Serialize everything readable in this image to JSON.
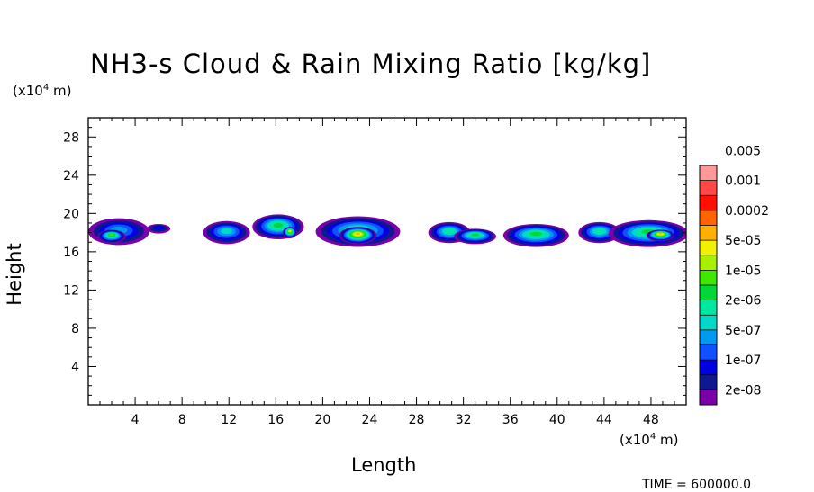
{
  "chart_data": {
    "type": "heatmap",
    "title": "NH3-s Cloud & Rain Mixing Ratio [kg/kg]",
    "xlabel": "Length",
    "ylabel": "Height",
    "x_unit_prefix": "(x10",
    "x_unit_exp": "4",
    "x_unit_suffix": " m)",
    "y_unit_prefix": "(x10",
    "y_unit_exp": "4",
    "y_unit_suffix": " m)",
    "xlim": [
      0,
      51
    ],
    "ylim": [
      0,
      30
    ],
    "x_ticks": [
      4,
      8,
      12,
      16,
      20,
      24,
      28,
      32,
      36,
      40,
      44,
      48
    ],
    "y_ticks": [
      4,
      8,
      12,
      16,
      20,
      24,
      28
    ],
    "colorbar": {
      "levels": [
        "2e-08",
        "1e-07",
        "5e-07",
        "2e-06",
        "1e-05",
        "5e-05",
        "0.0002",
        "0.001",
        "0.005"
      ],
      "colors": [
        "#7a00a8",
        "#101890",
        "#0000e0",
        "#1050ff",
        "#0098f0",
        "#00d8c8",
        "#00e8a0",
        "#00d838",
        "#40e800",
        "#a8f000",
        "#f0f000",
        "#ffb000",
        "#ff6400",
        "#ff1000",
        "#ff4848",
        "#ff9898"
      ]
    },
    "cells": [
      {
        "x": 2.6,
        "y": 18.1,
        "rx": 2.6,
        "ry": 1.4,
        "level": 4
      },
      {
        "x": 2.0,
        "y": 17.6,
        "rx": 1.2,
        "ry": 0.7,
        "level": 8
      },
      {
        "x": 6.0,
        "y": 18.4,
        "rx": 1.0,
        "ry": 0.5,
        "level": 2
      },
      {
        "x": 11.8,
        "y": 18.0,
        "rx": 2.0,
        "ry": 1.2,
        "level": 5
      },
      {
        "x": 16.2,
        "y": 18.6,
        "rx": 2.2,
        "ry": 1.3,
        "level": 7
      },
      {
        "x": 17.2,
        "y": 18.0,
        "rx": 0.6,
        "ry": 0.6,
        "level": 10
      },
      {
        "x": 23.0,
        "y": 18.1,
        "rx": 3.6,
        "ry": 1.6,
        "level": 6
      },
      {
        "x": 23.0,
        "y": 17.7,
        "rx": 1.6,
        "ry": 0.9,
        "level": 11
      },
      {
        "x": 30.8,
        "y": 18.0,
        "rx": 1.8,
        "ry": 1.1,
        "level": 6
      },
      {
        "x": 33.0,
        "y": 17.6,
        "rx": 1.8,
        "ry": 0.8,
        "level": 7
      },
      {
        "x": 38.2,
        "y": 17.7,
        "rx": 2.8,
        "ry": 1.2,
        "level": 7
      },
      {
        "x": 43.6,
        "y": 18.0,
        "rx": 1.8,
        "ry": 1.1,
        "level": 6
      },
      {
        "x": 47.8,
        "y": 17.9,
        "rx": 3.4,
        "ry": 1.4,
        "level": 7
      },
      {
        "x": 48.8,
        "y": 17.7,
        "rx": 1.2,
        "ry": 0.6,
        "level": 11
      }
    ]
  },
  "footer": {
    "time_text": "TIME =  600000.0"
  }
}
